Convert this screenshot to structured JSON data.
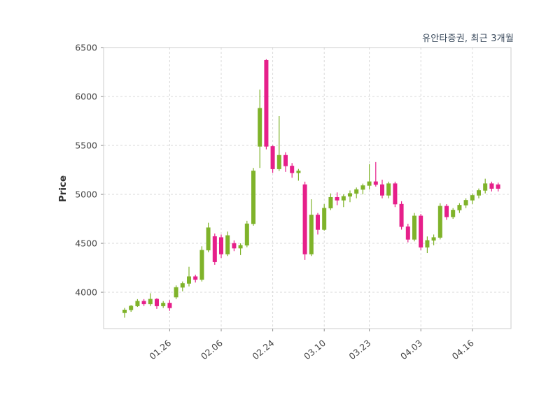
{
  "chart_data": {
    "type": "candlestick",
    "title": "유안타증권, 최근 3개월",
    "ylabel": "Price",
    "xlabel": "",
    "ylim": [
      3629,
      6500
    ],
    "yticks": [
      4000,
      4500,
      5000,
      5500,
      6000,
      6500
    ],
    "xticks": [
      {
        "index": 7,
        "label": "01.26"
      },
      {
        "index": 15,
        "label": "02.06"
      },
      {
        "index": 23,
        "label": "02.24"
      },
      {
        "index": 31,
        "label": "03.10"
      },
      {
        "index": 38,
        "label": "03.23"
      },
      {
        "index": 46,
        "label": "04.03"
      },
      {
        "index": 54,
        "label": "04.16"
      }
    ],
    "xtick_rotation": 40,
    "grid": true,
    "legend": false,
    "colors": {
      "up": "#7fb32a",
      "down": "#e61f8a",
      "grid": "#d9d9d9",
      "border": "#cccccc",
      "tick_text": "#444444",
      "title_text": "#3a4a5c"
    },
    "ohlc_format": [
      "open",
      "high",
      "low",
      "close"
    ],
    "candles": [
      [
        3790,
        3840,
        3740,
        3820
      ],
      [
        3820,
        3870,
        3800,
        3860
      ],
      [
        3860,
        3930,
        3850,
        3910
      ],
      [
        3910,
        3930,
        3860,
        3880
      ],
      [
        3880,
        3990,
        3860,
        3930
      ],
      [
        3930,
        3940,
        3830,
        3860
      ],
      [
        3860,
        3910,
        3840,
        3890
      ],
      [
        3890,
        3920,
        3810,
        3840
      ],
      [
        3950,
        4070,
        3930,
        4050
      ],
      [
        4050,
        4110,
        4010,
        4090
      ],
      [
        4090,
        4260,
        4060,
        4160
      ],
      [
        4160,
        4180,
        4100,
        4130
      ],
      [
        4130,
        4470,
        4110,
        4430
      ],
      [
        4430,
        4710,
        4410,
        4660
      ],
      [
        4570,
        4600,
        4280,
        4310
      ],
      [
        4560,
        4590,
        4350,
        4390
      ],
      [
        4390,
        4620,
        4370,
        4580
      ],
      [
        4500,
        4530,
        4420,
        4450
      ],
      [
        4450,
        4500,
        4380,
        4480
      ],
      [
        4480,
        4730,
        4460,
        4700
      ],
      [
        4700,
        5270,
        4680,
        5240
      ],
      [
        5490,
        6070,
        5270,
        5880
      ],
      [
        6370,
        6380,
        5460,
        5490
      ],
      [
        5490,
        5500,
        5220,
        5260
      ],
      [
        5260,
        5800,
        5240,
        5400
      ],
      [
        5400,
        5430,
        5230,
        5290
      ],
      [
        5290,
        5320,
        5170,
        5220
      ],
      [
        5220,
        5260,
        5140,
        5240
      ],
      [
        5100,
        5130,
        4330,
        4390
      ],
      [
        4390,
        4950,
        4370,
        4790
      ],
      [
        4790,
        4810,
        4590,
        4640
      ],
      [
        4640,
        4900,
        4630,
        4860
      ],
      [
        4860,
        5010,
        4840,
        4970
      ],
      [
        4970,
        5020,
        4890,
        4940
      ],
      [
        4940,
        5000,
        4870,
        4980
      ],
      [
        4980,
        5040,
        4920,
        5010
      ],
      [
        5010,
        5070,
        4960,
        5050
      ],
      [
        5050,
        5110,
        5000,
        5090
      ],
      [
        5090,
        5310,
        5050,
        5130
      ],
      [
        5130,
        5330,
        5080,
        5100
      ],
      [
        5100,
        5150,
        4960,
        4990
      ],
      [
        4990,
        5130,
        4960,
        5110
      ],
      [
        5110,
        5130,
        4870,
        4900
      ],
      [
        4900,
        4930,
        4640,
        4670
      ],
      [
        4670,
        4700,
        4510,
        4540
      ],
      [
        4540,
        4810,
        4520,
        4780
      ],
      [
        4780,
        4800,
        4430,
        4460
      ],
      [
        4460,
        4570,
        4400,
        4530
      ],
      [
        4530,
        4590,
        4480,
        4560
      ],
      [
        4560,
        4910,
        4540,
        4880
      ],
      [
        4880,
        4900,
        4740,
        4770
      ],
      [
        4770,
        4860,
        4750,
        4840
      ],
      [
        4840,
        4910,
        4810,
        4890
      ],
      [
        4890,
        4960,
        4860,
        4940
      ],
      [
        4940,
        5010,
        4900,
        4990
      ],
      [
        4990,
        5060,
        4960,
        5040
      ],
      [
        5040,
        5160,
        5010,
        5110
      ],
      [
        5110,
        5130,
        5030,
        5060
      ],
      [
        5100,
        5120,
        5030,
        5060
      ]
    ]
  }
}
